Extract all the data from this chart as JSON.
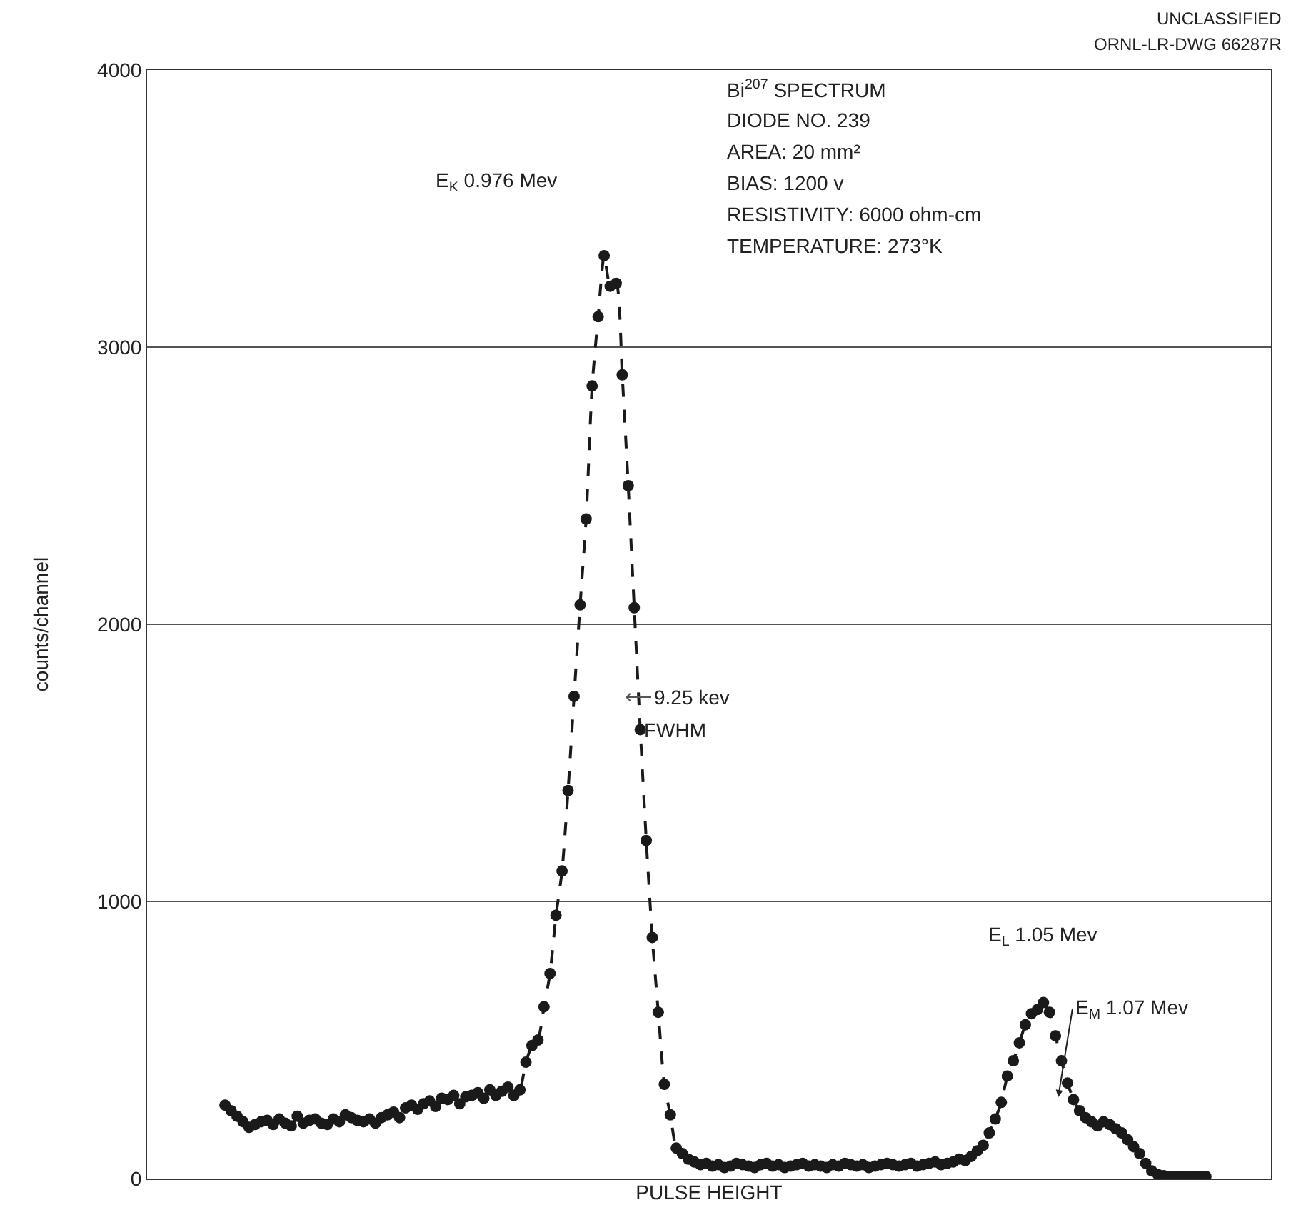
{
  "chart_data": {
    "type": "line",
    "xlabel": "PULSE HEIGHT",
    "ylabel": "counts/channel",
    "annotations": [
      "UNCLASSIFIED",
      "ORNL-LR-DWG 66287R",
      "Bi$^{207}$ SPECTRUM",
      "DIODE NO. 239",
      "AREA: 20 mm²",
      "BIAS: 1200 v",
      "RESISTIVITY: 6000 ohm-cm",
      "TEMPERATURE: 273°K",
      "E$_{K}$ 0.976 Mev",
      "9.25 kev",
      "FWHM",
      "E$_{L}$ 1.05 Mev",
      "E$_{M}$ 1.07 Mev"
    ],
    "categories": [
      null,
      null,
      null,
      null,
      null,
      null,
      null,
      null,
      null,
      null,
      null,
      null,
      null,
      null,
      null,
      null,
      null,
      null,
      null,
      null,
      null,
      null,
      null,
      null,
      null,
      null,
      null,
      null,
      null,
      null,
      null,
      null,
      null,
      null,
      null,
      null,
      null,
      null,
      null,
      null,
      null,
      null,
      null,
      null,
      null,
      null,
      null,
      null,
      null,
      null,
      null,
      null,
      null,
      null,
      null,
      null,
      null,
      null,
      null,
      null,
      null,
      null,
      null,
      null,
      null,
      null,
      null,
      null,
      null,
      null,
      null,
      null,
      null,
      null,
      null,
      null,
      null,
      null,
      null,
      null,
      null,
      null,
      null,
      null,
      null,
      null,
      null,
      null,
      null,
      null,
      null,
      null,
      null,
      null,
      null,
      null,
      null,
      null,
      null,
      null,
      null,
      null,
      null,
      null,
      null,
      null,
      null,
      null,
      null,
      null,
      null,
      null,
      null,
      null,
      null,
      null,
      null,
      null,
      null,
      null,
      null,
      null,
      null,
      null,
      null,
      null,
      null,
      null,
      null,
      null,
      null,
      null,
      null,
      null,
      null,
      null,
      null,
      null,
      null,
      null,
      null,
      null,
      null,
      null,
      null,
      null,
      null,
      null,
      null,
      null,
      null,
      null,
      null,
      null,
      null,
      null,
      null,
      null,
      null,
      null,
      null,
      null,
      null,
      null
    ],
    "series": [
      {
        "color": "#1a1a1a",
        "values": [
          265,
          245,
          225,
          205,
          185,
          195,
          205,
          210,
          195,
          215,
          200,
          190,
          225,
          200,
          210,
          215,
          200,
          195,
          215,
          205,
          230,
          220,
          210,
          205,
          215,
          200,
          220,
          230,
          240,
          220,
          255,
          265,
          250,
          270,
          280,
          260,
          290,
          285,
          300,
          270,
          295,
          300,
          310,
          290,
          320,
          300,
          315,
          330,
          300,
          320,
          420,
          480,
          500,
          620,
          740,
          950,
          1110,
          1400,
          1740,
          2070,
          2380,
          2860,
          3110,
          3330,
          3220,
          3230,
          2900,
          2500,
          2060,
          1620,
          1220,
          870,
          600,
          340,
          230,
          110,
          90,
          70,
          60,
          50,
          55,
          45,
          50,
          40,
          45,
          55,
          50,
          45,
          40,
          50,
          55,
          45,
          50,
          40,
          45,
          50,
          55,
          45,
          50,
          45,
          40,
          50,
          45,
          55,
          50,
          45,
          50,
          40,
          45,
          50,
          55,
          50,
          45,
          50,
          55,
          45,
          50,
          55,
          60,
          50,
          55,
          60,
          70,
          65,
          80,
          100,
          120,
          165,
          215,
          275,
          370,
          425,
          490,
          555,
          595,
          610,
          635,
          600,
          515,
          425,
          345,
          285,
          245,
          220,
          205,
          190,
          205,
          195,
          180,
          165,
          140,
          115,
          90,
          55,
          28,
          15,
          10,
          8,
          8,
          8,
          8,
          8,
          8,
          8
        ]
      }
    ],
    "ylim": [
      0,
      4000
    ],
    "yticks": [
      0,
      1000,
      2000,
      3000,
      4000
    ],
    "grid": "y",
    "tick_labels": "y",
    "marker": "circle",
    "line_style": "dashed"
  }
}
